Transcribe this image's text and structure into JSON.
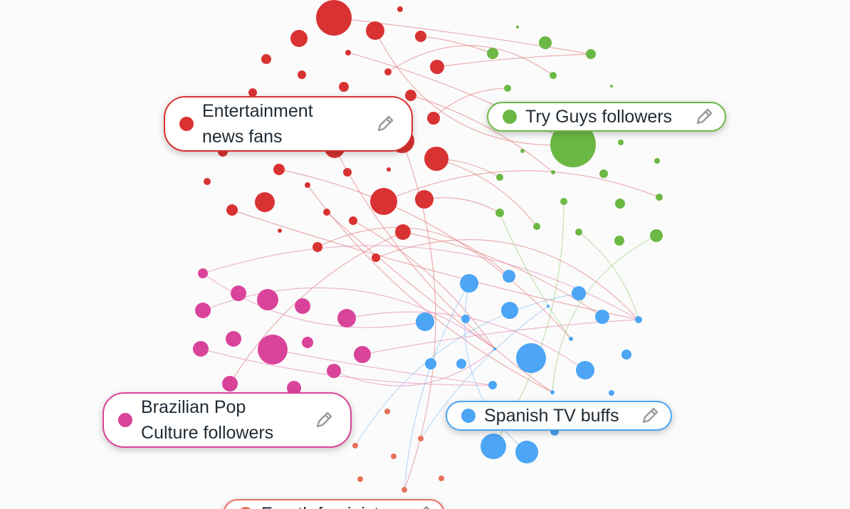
{
  "clusters": [
    {
      "id": "entertainment",
      "name": "Entertainment\nnews fans",
      "color": "#d93232",
      "edge_color": "#e27c7c",
      "icon": "pencil-icon"
    },
    {
      "id": "tryguys",
      "name": "Try Guys followers",
      "color": "#6cb845",
      "edge_color": "#9fd083",
      "icon": "pencil-icon"
    },
    {
      "id": "brazilian",
      "name": "Brazilian Pop\nCulture followers",
      "color": "#d9449a",
      "edge_color": "#e58ab8",
      "icon": "pencil-icon"
    },
    {
      "id": "spanish",
      "name": "Spanish TV buffs",
      "color": "#4ca5f5",
      "edge_color": "#8ec3f3",
      "icon": "pencil-icon"
    },
    {
      "id": "fourth",
      "name": "Fourth feminists",
      "color": "#e8715a",
      "edge_color": "#eea092",
      "icon": "pencil-icon"
    }
  ]
}
